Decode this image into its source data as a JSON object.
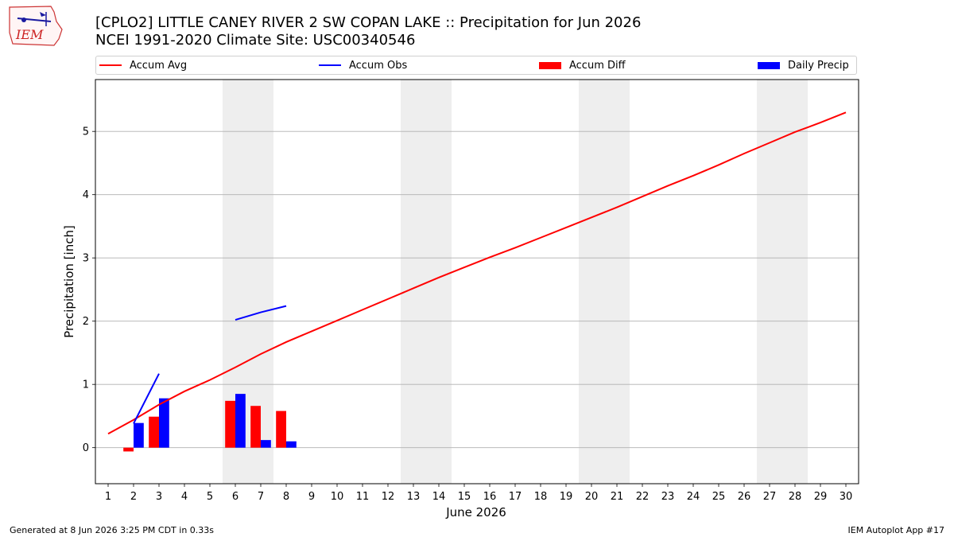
{
  "header": {
    "title_line1": "[CPLO2] LITTLE CANEY RIVER 2 SW COPAN LAKE :: Precipitation for Jun 2026",
    "title_line2": "NCEI 1991-2020 Climate Site: USC00340546"
  },
  "logo": {
    "text": "IEM"
  },
  "footer": {
    "generated": "Generated at 8 Jun 2026 3:25 PM CDT in 0.33s",
    "app": "IEM Autoplot App #17"
  },
  "colors": {
    "avg": "#ff0000",
    "obs": "#0000ff",
    "diff": "#ff0000",
    "daily": "#0000ff",
    "weekend": "#eeeeee",
    "grid": "#b0b0b0"
  },
  "chart_data": {
    "type": "bar",
    "xlabel": "June 2026",
    "ylabel": "Precipitation [inch]",
    "xlim": [
      0.5,
      30.5
    ],
    "ylim": [
      -0.57,
      5.82
    ],
    "x_ticks": [
      1,
      2,
      3,
      4,
      5,
      6,
      7,
      8,
      9,
      10,
      11,
      12,
      13,
      14,
      15,
      16,
      17,
      18,
      19,
      20,
      21,
      22,
      23,
      24,
      25,
      26,
      27,
      28,
      29,
      30
    ],
    "y_ticks": [
      0,
      1,
      2,
      3,
      4,
      5
    ],
    "grid": "y",
    "legend_position": "top",
    "weekend_bands": [
      [
        5.5,
        7.5
      ],
      [
        12.5,
        14.5
      ],
      [
        19.5,
        21.5
      ],
      [
        26.5,
        28.5
      ]
    ],
    "series": [
      {
        "name": "Accum Avg",
        "kind": "line",
        "x": [
          1,
          2,
          3,
          4,
          5,
          6,
          7,
          8,
          9,
          10,
          11,
          12,
          13,
          14,
          15,
          16,
          17,
          18,
          19,
          20,
          21,
          22,
          23,
          24,
          25,
          26,
          27,
          28,
          29,
          30
        ],
        "values": [
          0.22,
          0.44,
          0.68,
          0.89,
          1.07,
          1.27,
          1.48,
          1.67,
          1.84,
          2.01,
          2.18,
          2.35,
          2.52,
          2.69,
          2.85,
          3.01,
          3.16,
          3.32,
          3.48,
          3.64,
          3.8,
          3.97,
          4.14,
          4.3,
          4.47,
          4.65,
          4.82,
          4.99,
          5.14,
          5.3
        ]
      },
      {
        "name": "Accum Obs",
        "kind": "line",
        "segments": [
          {
            "x": [
              2,
              3
            ],
            "values": [
              0.38,
              1.17
            ]
          },
          {
            "x": [
              6,
              7,
              8
            ],
            "values": [
              2.02,
              2.14,
              2.24
            ]
          }
        ]
      },
      {
        "name": "Accum Diff",
        "kind": "bar",
        "x": [
          2,
          3,
          6,
          7,
          8
        ],
        "values": [
          -0.06,
          0.49,
          0.74,
          0.66,
          0.58
        ]
      },
      {
        "name": "Daily Precip",
        "kind": "bar",
        "x": [
          2,
          3,
          6,
          7,
          8
        ],
        "values": [
          0.39,
          0.78,
          0.85,
          0.12,
          0.1
        ]
      }
    ]
  }
}
